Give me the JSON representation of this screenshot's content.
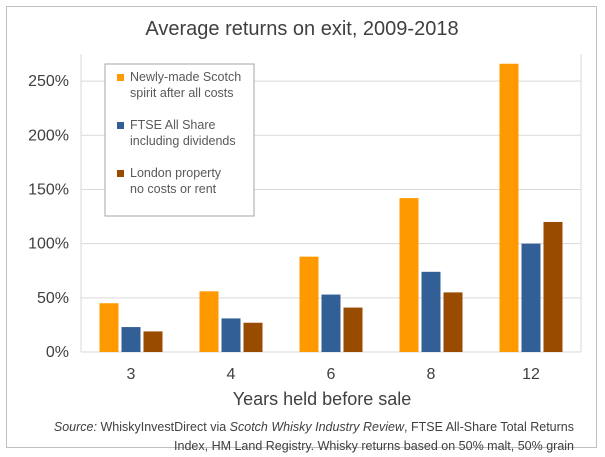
{
  "chart_data": {
    "type": "bar",
    "title": "Average returns on exit, 2009-2018",
    "xlabel": "Years held before sale",
    "ylabel": "",
    "categories": [
      "3",
      "4",
      "6",
      "8",
      "12"
    ],
    "series": [
      {
        "name": "Newly-made Scotch spirit after all costs",
        "legend_lines": [
          "Newly-made Scotch",
          "spirit after all costs"
        ],
        "color": "#FF9900",
        "values": [
          45,
          56,
          88,
          142,
          266
        ]
      },
      {
        "name": "FTSE All Share including dividends",
        "legend_lines": [
          "FTSE All Share",
          "including dividends"
        ],
        "color": "#335F97",
        "values": [
          23,
          31,
          53,
          74,
          100
        ]
      },
      {
        "name": "London property no costs or rent",
        "legend_lines": [
          "London property",
          "no costs or rent"
        ],
        "color": "#994C00",
        "values": [
          19,
          27,
          41,
          55,
          120
        ]
      }
    ],
    "ylim": [
      0,
      275
    ],
    "yticks": [
      0,
      50,
      100,
      150,
      200,
      250
    ],
    "ytick_labels": [
      "0%",
      "50%",
      "100%",
      "150%",
      "200%",
      "250%"
    ],
    "grid": true,
    "legend_position": "top-left"
  },
  "source": {
    "label": "Source:",
    "text1": " WhiskyInvestDirect via ",
    "publication": "Scotch Whisky Industry Review",
    "text2": ", FTSE All-Share Total Returns Index, HM Land Registry. Whisky returns based on 50% malt, 50% grain"
  }
}
